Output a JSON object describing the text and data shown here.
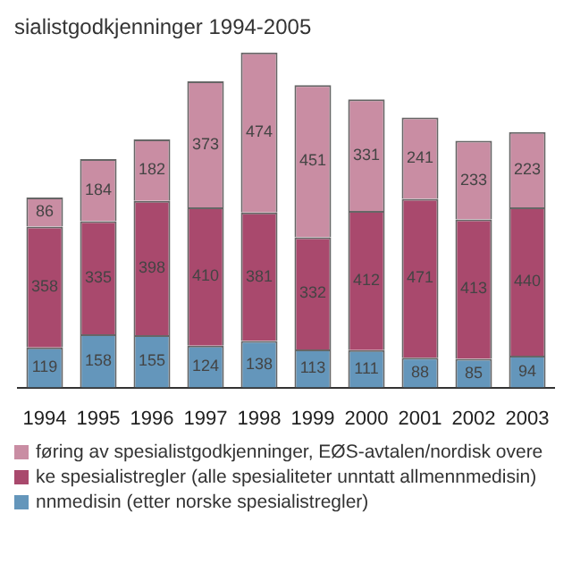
{
  "chart_data": {
    "type": "bar",
    "title": "sialistgodkjenninger 1994-2005",
    "stacked": true,
    "data_labels": true,
    "legend": "bottom",
    "categories": [
      "1994",
      "1995",
      "1996",
      "1997",
      "1998",
      "1999",
      "2000",
      "2001",
      "2002",
      "2003"
    ],
    "series": [
      {
        "name": "nnmedisin (etter norske spesialistregler)",
        "color": "#6496bb",
        "values": [
          119,
          158,
          155,
          124,
          138,
          113,
          111,
          88,
          85,
          94
        ]
      },
      {
        "name": "ke spesialistregler (alle spesialiteter unntatt allmennmedisin)",
        "color": "#a9496d",
        "values": [
          358,
          335,
          398,
          410,
          381,
          332,
          412,
          471,
          413,
          440
        ]
      },
      {
        "name": "føring av spesialistgodkjenninger, EØS-avtalen/nordisk overe",
        "color": "#c98da3",
        "values": [
          86,
          184,
          182,
          373,
          474,
          451,
          331,
          241,
          233,
          223
        ]
      }
    ]
  }
}
